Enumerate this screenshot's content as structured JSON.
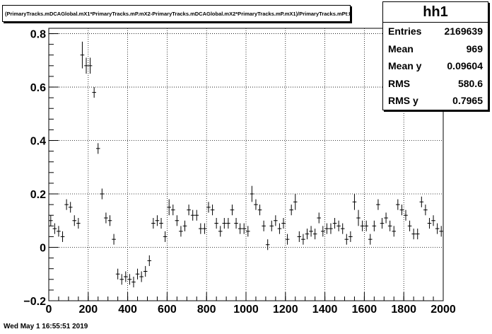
{
  "histogram": {
    "title": "(PrimaryTracks.mDCAGlobal.mX1*PrimaryTracks.mP.mX2-PrimaryTracks.mDCAGlobal.mX2*PrimaryTracks.mP.mX1)/PrimaryTracks.mPt:Entry$",
    "name": "hh1",
    "stats": [
      {
        "label": "Entries",
        "value": "2169639"
      },
      {
        "label": "Mean",
        "value": "969"
      },
      {
        "label": "Mean y",
        "value": "0.09604"
      },
      {
        "label": "RMS",
        "value": "580.6"
      },
      {
        "label": "RMS y",
        "value": "0.7965"
      }
    ]
  },
  "footer_text": "Wed May  1 16:55:51 2019",
  "chart_data": {
    "type": "scatter",
    "xlim": [
      0,
      2000
    ],
    "ylim": [
      -0.2,
      0.82
    ],
    "x_ticks": [
      0,
      200,
      400,
      600,
      800,
      1000,
      1200,
      1400,
      1600,
      1800,
      2000
    ],
    "y_ticks": [
      -0.2,
      0,
      0.2,
      0.4,
      0.6,
      0.8
    ],
    "x_tick_labels": [
      "0",
      "200",
      "400",
      "600",
      "800",
      "1000",
      "1200",
      "1400",
      "1600",
      "1800",
      "2000"
    ],
    "y_tick_labels": [
      "−0.2",
      "0",
      "0.2",
      "0.4",
      "0.6",
      "0.8"
    ],
    "grid": true,
    "bin_width": 20,
    "x": [
      10,
      30,
      50,
      70,
      90,
      110,
      130,
      150,
      170,
      190,
      210,
      230,
      250,
      270,
      290,
      310,
      330,
      350,
      370,
      390,
      410,
      430,
      450,
      470,
      490,
      510,
      530,
      550,
      570,
      590,
      610,
      630,
      650,
      670,
      690,
      710,
      730,
      750,
      770,
      790,
      810,
      830,
      850,
      870,
      890,
      910,
      930,
      950,
      970,
      990,
      1010,
      1030,
      1050,
      1070,
      1090,
      1110,
      1130,
      1150,
      1170,
      1190,
      1210,
      1230,
      1250,
      1270,
      1290,
      1310,
      1330,
      1350,
      1370,
      1390,
      1410,
      1430,
      1450,
      1470,
      1490,
      1510,
      1530,
      1550,
      1570,
      1590,
      1610,
      1630,
      1650,
      1670,
      1690,
      1710,
      1730,
      1750,
      1770,
      1790,
      1810,
      1830,
      1850,
      1870,
      1890,
      1910,
      1930,
      1950,
      1970,
      1990
    ],
    "y": [
      0.1,
      0.07,
      0.06,
      0.04,
      0.16,
      0.15,
      0.1,
      0.09,
      0.72,
      0.68,
      0.68,
      0.58,
      0.37,
      0.2,
      0.11,
      0.1,
      0.03,
      -0.1,
      -0.12,
      -0.11,
      -0.12,
      -0.13,
      -0.1,
      -0.11,
      -0.09,
      -0.05,
      0.09,
      0.1,
      0.09,
      0.04,
      0.15,
      0.14,
      0.1,
      0.06,
      0.08,
      0.14,
      0.12,
      0.12,
      0.07,
      0.07,
      0.15,
      0.14,
      0.09,
      0.06,
      0.09,
      0.09,
      0.14,
      0.09,
      0.07,
      0.07,
      0.06,
      0.2,
      0.16,
      0.14,
      0.08,
      0.01,
      0.08,
      0.1,
      0.07,
      0.09,
      0.03,
      0.14,
      0.17,
      0.04,
      0.03,
      0.05,
      0.06,
      0.05,
      0.11,
      0.06,
      0.07,
      0.07,
      0.09,
      0.08,
      0.07,
      0.03,
      0.04,
      0.17,
      0.11,
      0.08,
      0.08,
      0.03,
      0.08,
      0.16,
      0.09,
      0.11,
      0.08,
      0.06,
      0.16,
      0.14,
      0.12,
      0.08,
      0.05,
      0.05,
      0.17,
      0.14,
      0.09,
      0.1,
      0.07,
      0.06
    ],
    "y_err": [
      0.02,
      0.02,
      0.02,
      0.02,
      0.02,
      0.02,
      0.02,
      0.02,
      0.05,
      0.03,
      0.03,
      0.02,
      0.02,
      0.02,
      0.02,
      0.02,
      0.02,
      0.02,
      0.02,
      0.02,
      0.02,
      0.02,
      0.02,
      0.02,
      0.02,
      0.02,
      0.02,
      0.02,
      0.02,
      0.02,
      0.03,
      0.02,
      0.02,
      0.02,
      0.02,
      0.02,
      0.02,
      0.02,
      0.02,
      0.02,
      0.02,
      0.02,
      0.02,
      0.02,
      0.02,
      0.02,
      0.02,
      0.02,
      0.02,
      0.02,
      0.02,
      0.03,
      0.02,
      0.02,
      0.02,
      0.02,
      0.02,
      0.02,
      0.02,
      0.02,
      0.02,
      0.02,
      0.03,
      0.02,
      0.02,
      0.02,
      0.02,
      0.02,
      0.02,
      0.02,
      0.02,
      0.02,
      0.02,
      0.02,
      0.02,
      0.02,
      0.02,
      0.03,
      0.03,
      0.02,
      0.02,
      0.02,
      0.02,
      0.02,
      0.02,
      0.02,
      0.02,
      0.02,
      0.02,
      0.02,
      0.02,
      0.02,
      0.02,
      0.02,
      0.02,
      0.02,
      0.02,
      0.02,
      0.02,
      0.02
    ]
  }
}
